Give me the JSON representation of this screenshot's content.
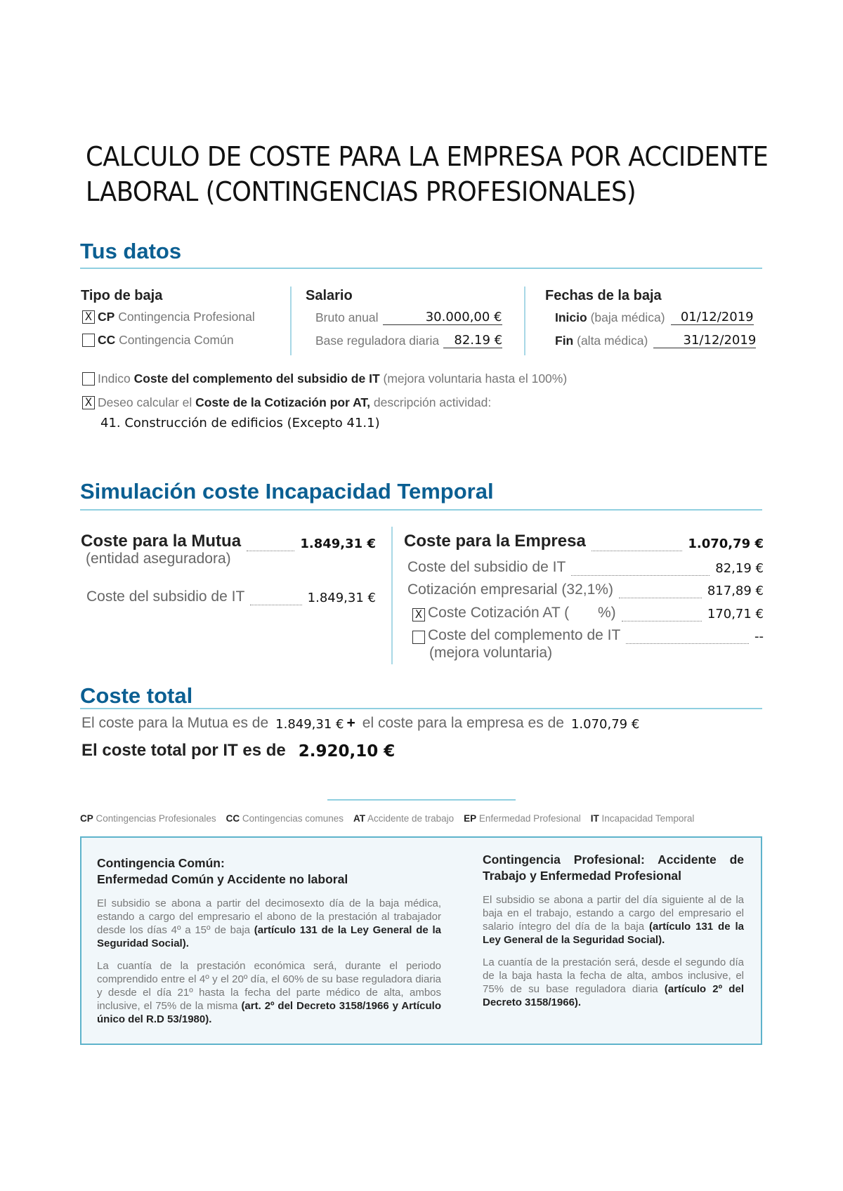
{
  "title_lines": [
    "CALCULO DE COSTE PARA LA EMPRESA POR ACCIDENTE",
    "LABORAL (CONTINGENCIAS PROFESIONALES)"
  ],
  "tus_datos": {
    "heading": "Tus datos",
    "tipo": {
      "label": "Tipo de baja",
      "options": [
        {
          "checked": true,
          "mark": "X",
          "code": "CP",
          "text": "Contingencia Profesional"
        },
        {
          "checked": false,
          "mark": "",
          "code": "CC",
          "text": "Contingencia Común"
        }
      ]
    },
    "salario": {
      "label": "Salario",
      "bruto_label": "Bruto anual",
      "bruto": "30.000,00 €",
      "base_label": "Base reguladora diaria",
      "base": "82.19 €"
    },
    "fechas": {
      "label": "Fechas de la baja",
      "inicio_b": "Inicio",
      "inicio_l": "(baja médica)",
      "inicio": "01/12/2019",
      "fin_b": "Fin",
      "fin_l": "(alta médica)",
      "fin": "31/12/2019"
    },
    "check1": {
      "mark": "",
      "pre": "Indico",
      "bold": "Coste del complemento del subsidio de IT",
      "post": "(mejora voluntaria hasta el 100%)"
    },
    "check2": {
      "mark": "X",
      "pre": "Deseo calcular el",
      "bold": "Coste de la Cotización por AT,",
      "post": "descripción actividad:"
    },
    "actividad": "41. Construcción de edificios (Excepto 41.1)"
  },
  "simulacion": {
    "heading": "Simulación coste Incapacidad Temporal",
    "mutua": {
      "label": "Coste para la Mutua",
      "value": "1.849,31 €",
      "sub": "(entidad aseguradora)",
      "item_label": "Coste del subsidio de IT",
      "item_value": "1.849,31 €"
    },
    "empresa": {
      "label": "Coste para la Empresa",
      "value": "1.070,79 €",
      "items": [
        {
          "label": "Coste del subsidio de IT",
          "value": "82,19 €"
        },
        {
          "label": "Cotización empresarial (32,1%)",
          "value": "817,89 €"
        },
        {
          "mark": "X",
          "label": "Coste Cotización AT (       %)",
          "value": "170,71 €"
        },
        {
          "mark": "",
          "label": "Coste del complemento de IT",
          "label2": "(mejora voluntaria)",
          "value": "--"
        }
      ]
    }
  },
  "total": {
    "heading": "Coste total",
    "l1a": "El coste para la Mutua es de",
    "v1": "1.849,31 €",
    "plus": "+",
    "l1b": "el coste para la empresa es de",
    "v2": "1.070,79 €",
    "l2": "El coste total por IT es de",
    "v3": "2.920,10 €"
  },
  "legend": [
    {
      "code": "CP",
      "text": "Contingencias Profesionales"
    },
    {
      "code": "CC",
      "text": "Contingencias comunes"
    },
    {
      "code": "AT",
      "text": "Accidente de trabajo"
    },
    {
      "code": "EP",
      "text": "Enfermedad Profesional"
    },
    {
      "code": "IT",
      "text": "Incapacidad Temporal"
    }
  ],
  "info": {
    "left": {
      "h1": "Contingencia Común:",
      "h2": "Enfermedad Común y Accidente no laboral",
      "p1": "El subsidio se abona a partir del decimosexto día de la baja médica, estando a cargo del empresario el abono de la prestación al trabajador desde los días 4º a 15º de baja",
      "p1b": "(artículo 131 de la Ley General de la Seguridad Social).",
      "p2": "La cuantía de la prestación económica será, durante el periodo comprendido entre el 4º y el 20º día, el 60% de su base reguladora diaria y desde el día 21º hasta la fecha del parte médico de alta, ambos inclusive, el 75% de la misma",
      "p2b": "(art. 2º del Decreto 3158/1966 y Artículo único del R.D 53/1980)."
    },
    "right": {
      "h1": "Contingencia Profesional:",
      "h2": "Accidente de Trabajo y Enfermedad Profesional",
      "p1": "El subsidio se abona a partir del día siguiente al de la baja en el trabajo, estando a cargo del empresario el salario íntegro del día de la baja",
      "p1b": "(artículo 131 de la Ley General de la Seguridad Social).",
      "p2": "La cuantía de la prestación será, desde el segundo día de la baja hasta la fecha de alta, ambos inclusive, el 75% de su base reguladora diaria",
      "p2b": "(artículo 2º del Decreto 3158/1966)."
    }
  }
}
